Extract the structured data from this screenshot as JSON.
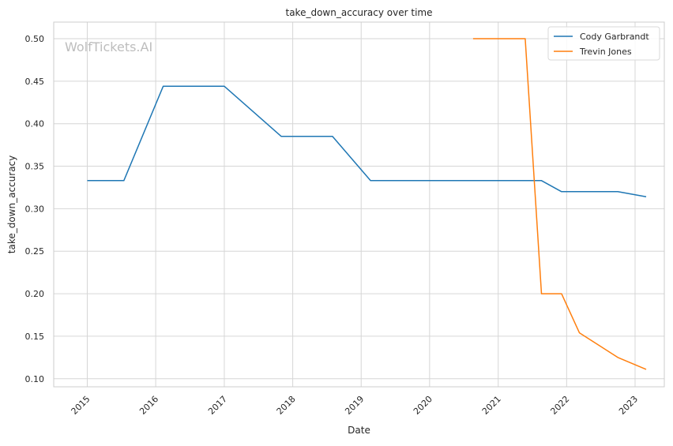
{
  "chart_data": {
    "type": "line",
    "title": "take_down_accuracy over time",
    "xlabel": "Date",
    "ylabel": "take_down_accuracy",
    "watermark": "WolfTickets.AI",
    "x_ticks": [
      "2015",
      "2016",
      "2017",
      "2018",
      "2019",
      "2020",
      "2021",
      "2022",
      "2023"
    ],
    "y_ticks": [
      "0.10",
      "0.15",
      "0.20",
      "0.25",
      "0.30",
      "0.35",
      "0.40",
      "0.45",
      "0.50"
    ],
    "xlim": [
      "2014-07-06",
      "2023-06-06"
    ],
    "ylim": [
      0.0905,
      0.5195
    ],
    "grid": true,
    "legend_position": "top-right",
    "series": [
      {
        "name": "Cody Garbrandt",
        "color": "#1f77b4",
        "points": [
          {
            "x": "2015-01-01",
            "y": 0.333
          },
          {
            "x": "2015-07-15",
            "y": 0.333
          },
          {
            "x": "2016-02-10",
            "y": 0.444
          },
          {
            "x": "2017-01-01",
            "y": 0.444
          },
          {
            "x": "2017-11-01",
            "y": 0.385
          },
          {
            "x": "2018-08-01",
            "y": 0.385
          },
          {
            "x": "2019-02-20",
            "y": 0.333
          },
          {
            "x": "2021-08-20",
            "y": 0.333
          },
          {
            "x": "2021-12-05",
            "y": 0.32
          },
          {
            "x": "2022-10-01",
            "y": 0.32
          },
          {
            "x": "2023-03-01",
            "y": 0.314
          }
        ]
      },
      {
        "name": "Trevin Jones",
        "color": "#ff7f0e",
        "points": [
          {
            "x": "2020-08-20",
            "y": 0.5
          },
          {
            "x": "2021-05-25",
            "y": 0.5
          },
          {
            "x": "2021-08-20",
            "y": 0.2
          },
          {
            "x": "2021-12-05",
            "y": 0.2
          },
          {
            "x": "2022-03-10",
            "y": 0.154
          },
          {
            "x": "2022-10-01",
            "y": 0.125
          },
          {
            "x": "2023-03-01",
            "y": 0.111
          }
        ]
      }
    ]
  }
}
